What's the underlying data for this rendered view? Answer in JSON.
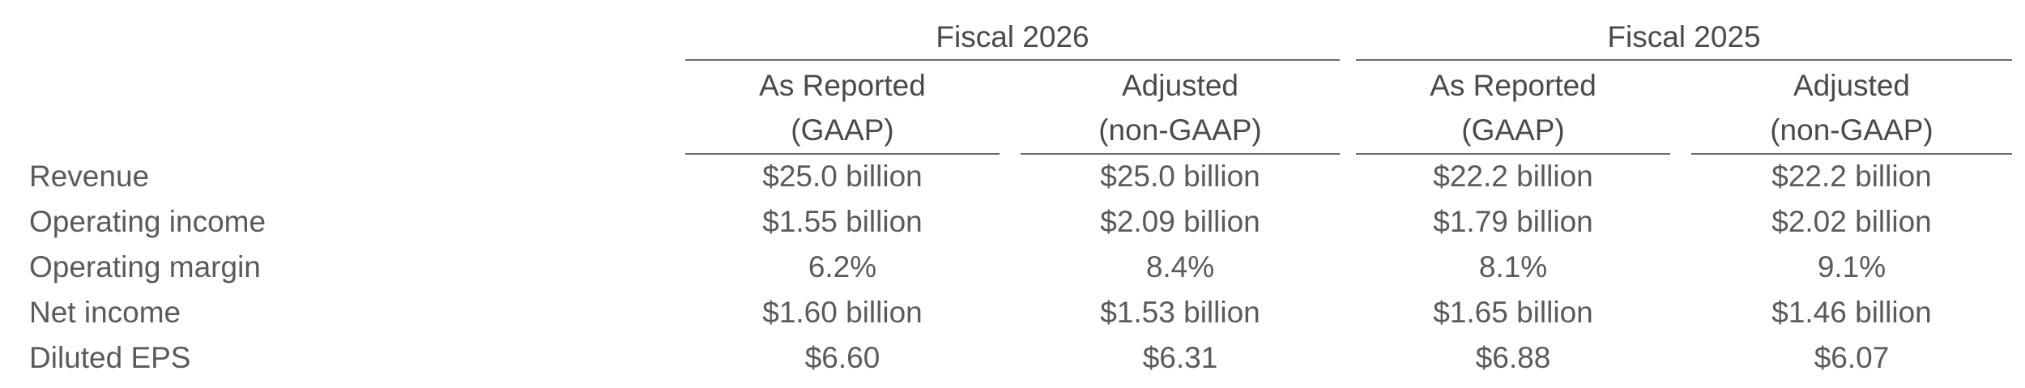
{
  "table": {
    "groups": [
      {
        "title": "Fiscal 2026",
        "columns": [
          {
            "line1": "As Reported",
            "line2": "(GAAP)"
          },
          {
            "line1": "Adjusted",
            "line2": "(non-GAAP)"
          }
        ]
      },
      {
        "title": "Fiscal 2025",
        "columns": [
          {
            "line1": "As Reported",
            "line2": "(GAAP)"
          },
          {
            "line1": "Adjusted",
            "line2": "(non-GAAP)"
          }
        ]
      }
    ],
    "rows": [
      {
        "label": "Revenue",
        "values": [
          "$25.0 billion",
          "$25.0 billion",
          "$22.2 billion",
          "$22.2 billion"
        ]
      },
      {
        "label": "Operating income",
        "values": [
          "$1.55 billion",
          "$2.09 billion",
          "$1.79 billion",
          "$2.02 billion"
        ]
      },
      {
        "label": "Operating margin",
        "values": [
          "6.2%",
          "8.4%",
          "8.1%",
          "9.1%"
        ]
      },
      {
        "label": "Net income",
        "values": [
          "$1.60 billion",
          "$1.53 billion",
          "$1.65 billion",
          "$1.46 billion"
        ]
      },
      {
        "label": "Diluted EPS",
        "values": [
          "$6.60",
          "$6.31",
          "$6.88",
          "$6.07"
        ]
      }
    ]
  }
}
